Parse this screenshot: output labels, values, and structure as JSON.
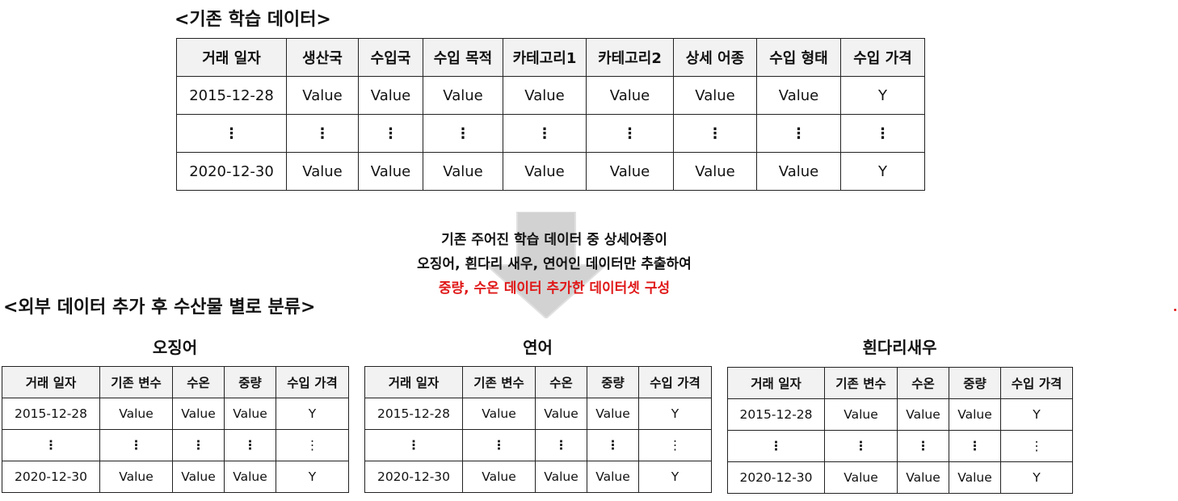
{
  "colors": {
    "highlight": "#e01818",
    "arrow": "#cfcfcf",
    "header_bg": "#f2f2f2"
  },
  "existing": {
    "title": "<기존 학습 데이터>",
    "headers": [
      "거래 일자",
      "생산국",
      "수입국",
      "수입 목적",
      "카테고리1",
      "카테고리2",
      "상세 어종",
      "수입 형태",
      "수입 가격"
    ],
    "rows": [
      [
        "2015-12-28",
        "Value",
        "Value",
        "Value",
        "Value",
        "Value",
        "Value",
        "Value",
        "Y"
      ],
      [
        "⋮",
        "⋮",
        "⋮",
        "⋮",
        "⋮",
        "⋮",
        "⋮",
        "⋮",
        "⋮"
      ],
      [
        "2020-12-30",
        "Value",
        "Value",
        "Value",
        "Value",
        "Value",
        "Value",
        "Value",
        "Y"
      ]
    ]
  },
  "note": {
    "line1": "기존 주어진 학습 데이터 중 상세어종이",
    "line2": "오징어, 흰다리 새우, 연어인 데이터만 추출하여",
    "line3": "중량, 수온 데이터 추가한 데이터셋 구성"
  },
  "external": {
    "title": "<외부 데이터 추가 후 수산물 별로 분류>",
    "tables": [
      {
        "name": "오징어",
        "headers": [
          "거래 일자",
          "기존 변수",
          "수온",
          "중량",
          "수입 가격"
        ],
        "rows": [
          [
            "2015-12-28",
            "Value",
            "Value",
            "Value",
            "Y"
          ],
          [
            "⋮",
            "⋮",
            "⋮",
            "⋮",
            "⋮"
          ],
          [
            "2020-12-30",
            "Value",
            "Value",
            "Value",
            "Y"
          ]
        ]
      },
      {
        "name": "연어",
        "headers": [
          "거래 일자",
          "기존 변수",
          "수온",
          "중량",
          "수입 가격"
        ],
        "rows": [
          [
            "2015-12-28",
            "Value",
            "Value",
            "Value",
            "Y"
          ],
          [
            "⋮",
            "⋮",
            "⋮",
            "⋮",
            "⋮"
          ],
          [
            "2020-12-30",
            "Value",
            "Value",
            "Value",
            "Y"
          ]
        ]
      },
      {
        "name": "흰다리새우",
        "headers": [
          "거래 일자",
          "기존 변수",
          "수온",
          "중량",
          "수입 가격"
        ],
        "rows": [
          [
            "2015-12-28",
            "Value",
            "Value",
            "Value",
            "Y"
          ],
          [
            "⋮",
            "⋮",
            "⋮",
            "⋮",
            "⋮"
          ],
          [
            "2020-12-30",
            "Value",
            "Value",
            "Value",
            "Y"
          ]
        ]
      }
    ]
  }
}
